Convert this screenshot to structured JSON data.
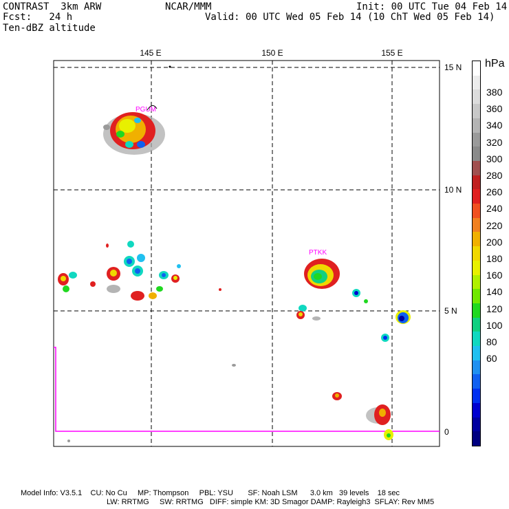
{
  "header": {
    "model_title": "CONTRAST  3km ARW",
    "forecast": "Fcst:   24 h",
    "field": "Ten-dBZ altitude",
    "center": "NCAR/MMM",
    "init": "Init: 00 UTC Tue 04 Feb 14",
    "valid": "Valid: 00 UTC Wed 05 Feb 14 (10 ChT Wed 05 Feb 14)"
  },
  "map": {
    "lon_labels": [
      "145 E",
      "150 E",
      "155 E"
    ],
    "lat_labels": [
      "15 N",
      "10 N",
      "5 N",
      "0"
    ],
    "stations": [
      "PGUM",
      "PTKK"
    ],
    "colors": {
      "coastline_marker": "#ff00ff",
      "grid": "#000000"
    }
  },
  "colorbar": {
    "unit": "hPa",
    "tick_labels": [
      "380",
      "360",
      "340",
      "320",
      "300",
      "280",
      "260",
      "240",
      "220",
      "200",
      "180",
      "160",
      "140",
      "120",
      "100",
      "80",
      "60"
    ],
    "colors_top_to_bottom": [
      "#ffffff",
      "#ececec",
      "#dcdcdc",
      "#c8c8c8",
      "#b4b4b4",
      "#9a9a9a",
      "#8a8a8a",
      "#a05050",
      "#c02020",
      "#e02020",
      "#f05020",
      "#f08020",
      "#f0b000",
      "#f0d800",
      "#e8f000",
      "#b0f000",
      "#70e800",
      "#20d820",
      "#10d080",
      "#10d8c0",
      "#20c0f0",
      "#2090f0",
      "#1060f0",
      "#0030f0",
      "#0000d0",
      "#0000a0",
      "#000080"
    ]
  },
  "footer": {
    "line1": "Model Info: V3.5.1    CU: No Cu     MP: Thompson     PBL: YSU       SF: Noah LSM      3.0 km   39 levels    18 sec",
    "line2": "LW: RRTMG     SW: RRTMG   DIFF: simple KM: 3D Smagor DAMP: Rayleigh3  SFLAY: Rev MM5"
  }
}
